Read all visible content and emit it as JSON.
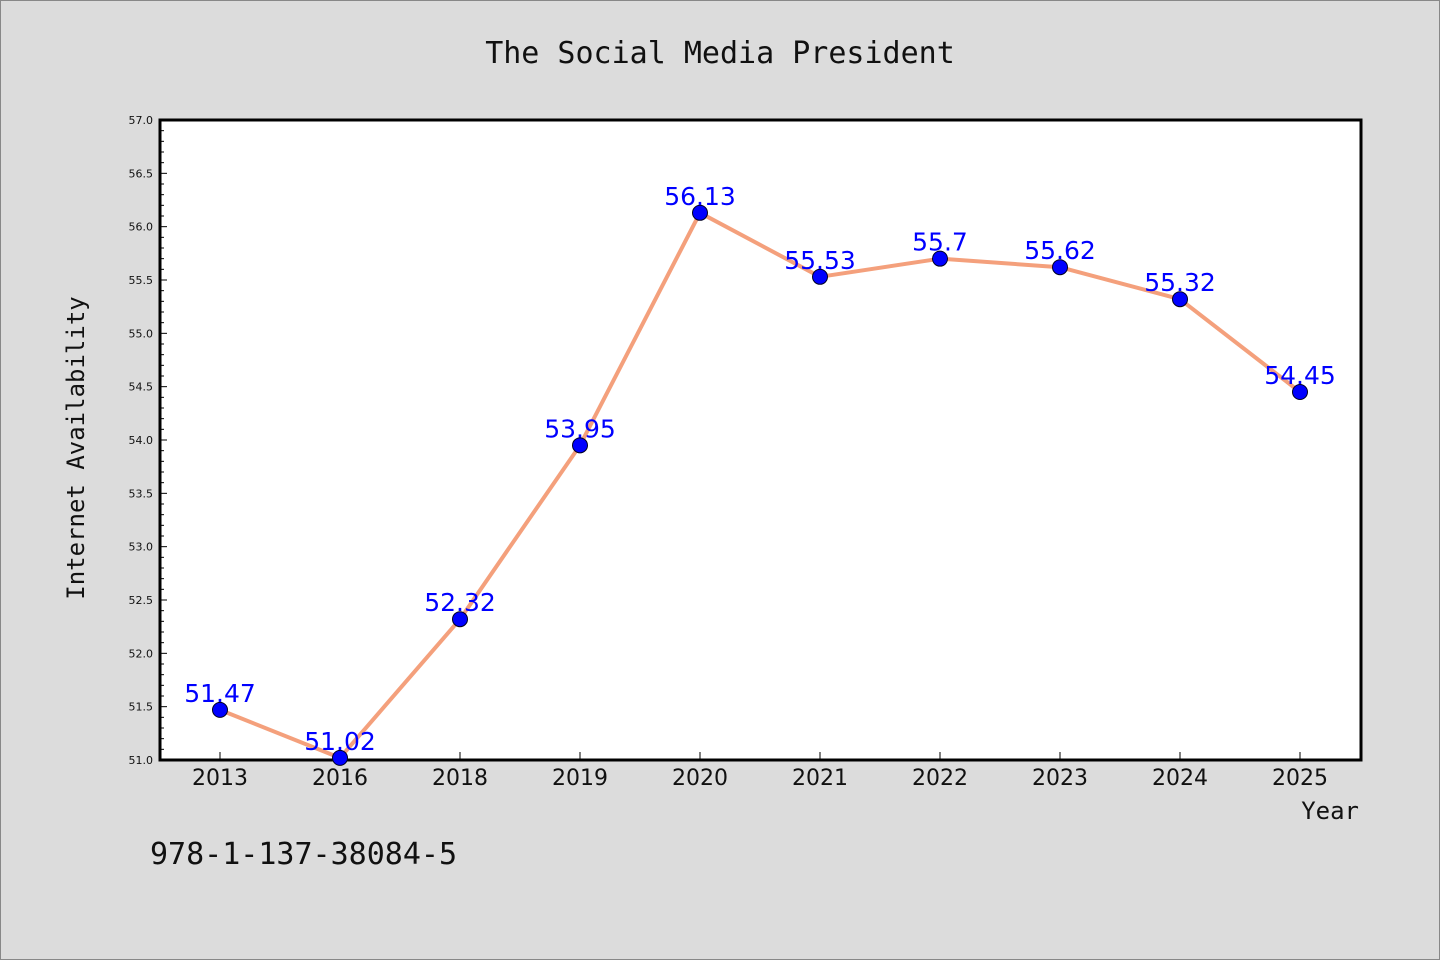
{
  "colors": {
    "background": "#dcdcdc",
    "plot_background": "#ffffff",
    "line": "#f4a07c",
    "marker": "#0000ff",
    "label": "#0000ff"
  },
  "footer": "978-1-137-38084-5",
  "chart_data": {
    "type": "line",
    "title": "The Social Media President",
    "xlabel": "Year",
    "ylabel": "Internet Availability",
    "categories": [
      "2013",
      "2016",
      "2018",
      "2019",
      "2020",
      "2021",
      "2022",
      "2023",
      "2024",
      "2025"
    ],
    "series": [
      {
        "values": [
          51.47,
          51.02,
          52.32,
          53.95,
          56.13,
          55.53,
          55.7,
          55.62,
          55.32,
          54.45
        ],
        "labels": [
          "51.47",
          "51.02",
          "52.32",
          "53.95",
          "56.13",
          "55.53",
          "55.7",
          "55.62",
          "55.32",
          "54.45"
        ]
      }
    ],
    "ylim": [
      51.0,
      57.0
    ],
    "yticks": [
      "51.0",
      "51.5",
      "52.0",
      "52.5",
      "53.0",
      "53.5",
      "54.0",
      "54.5",
      "55.0",
      "55.5",
      "56.0",
      "56.5",
      "57.0"
    ],
    "grid": false,
    "legend": "none"
  }
}
